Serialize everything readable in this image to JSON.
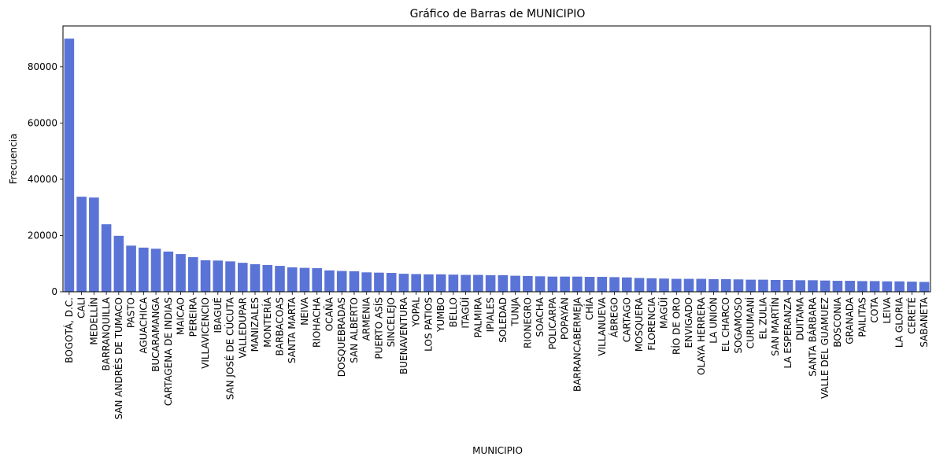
{
  "chart_data": {
    "type": "bar",
    "title": "Gráfico de Barras de MUNICIPIO",
    "xlabel": "MUNICIPIO",
    "ylabel": "Frecuencia",
    "ylim": [
      0,
      94500
    ],
    "yticks": [
      0,
      20000,
      40000,
      60000,
      80000
    ],
    "grid": false,
    "bar_color": "#5a73d6",
    "categories": [
      "BOGOTÁ, D.C.",
      "CALI",
      "MEDELLÍN",
      "BARRANQUILLA",
      "SAN ANDRÉS DE TUMACO",
      "PASTO",
      "AGUACHICA",
      "BUCARAMANGA",
      "CARTAGENA DE INDIAS",
      "MAICAO",
      "PEREIRA",
      "VILLAVICENCIO",
      "IBAGUÉ",
      "SAN JOSÉ DE CÚCUTA",
      "VALLEDUPAR",
      "MANIZALES",
      "MONTERÍA",
      "BARBACOAS",
      "SANTA MARTA",
      "NEIVA",
      "RIOHACHA",
      "OCAÑA",
      "DOSQUEBRADAS",
      "SAN ALBERTO",
      "ARMENIA",
      "PUERTO ASÍS",
      "SINCELEJO",
      "BUENAVENTURA",
      "YOPAL",
      "LOS PATIOS",
      "YUMBO",
      "BELLO",
      "ITAGÜÍ",
      "PALMIRA",
      "IPIALES",
      "SOLEDAD",
      "TUNJA",
      "RIONEGRO",
      "SOACHA",
      "POLICARPA",
      "POPAYÁN",
      "BARRANCABERMEJA",
      "CHÍA",
      "VILLANUEVA",
      "ÁBREGO",
      "CARTAGO",
      "MOSQUERA",
      "FLORENCIA",
      "MAGÜÍ",
      "RÍO DE ORO",
      "ENVIGADO",
      "OLAYA HERRERA",
      "LA UNIÓN",
      "EL CHARCO",
      "SOGAMOSO",
      "CURUMANÍ",
      "EL ZULIA",
      "SAN MARTÍN",
      "LA ESPERANZA",
      "DUITAMA",
      "SANTA BÁRBARA",
      "VALLE DEL GUAMUEZ",
      "BOSCONIA",
      "GRANADA",
      "PAILITAS",
      "COTA",
      "LEIVA",
      "LA GLORIA",
      "CERETÉ",
      "SABANETA"
    ],
    "values": [
      90000,
      33800,
      33500,
      24000,
      19900,
      16400,
      15700,
      15300,
      14300,
      13400,
      12300,
      11200,
      11100,
      10800,
      10300,
      9800,
      9500,
      9200,
      8700,
      8500,
      8400,
      7600,
      7400,
      7300,
      6900,
      6800,
      6700,
      6400,
      6300,
      6200,
      6200,
      6100,
      6000,
      6000,
      5900,
      5900,
      5700,
      5600,
      5500,
      5400,
      5400,
      5400,
      5300,
      5300,
      5200,
      5100,
      4900,
      4800,
      4700,
      4600,
      4600,
      4600,
      4500,
      4500,
      4400,
      4300,
      4300,
      4200,
      4200,
      4100,
      4100,
      4000,
      3900,
      3900,
      3800,
      3800,
      3700,
      3700,
      3600,
      3500
    ]
  }
}
